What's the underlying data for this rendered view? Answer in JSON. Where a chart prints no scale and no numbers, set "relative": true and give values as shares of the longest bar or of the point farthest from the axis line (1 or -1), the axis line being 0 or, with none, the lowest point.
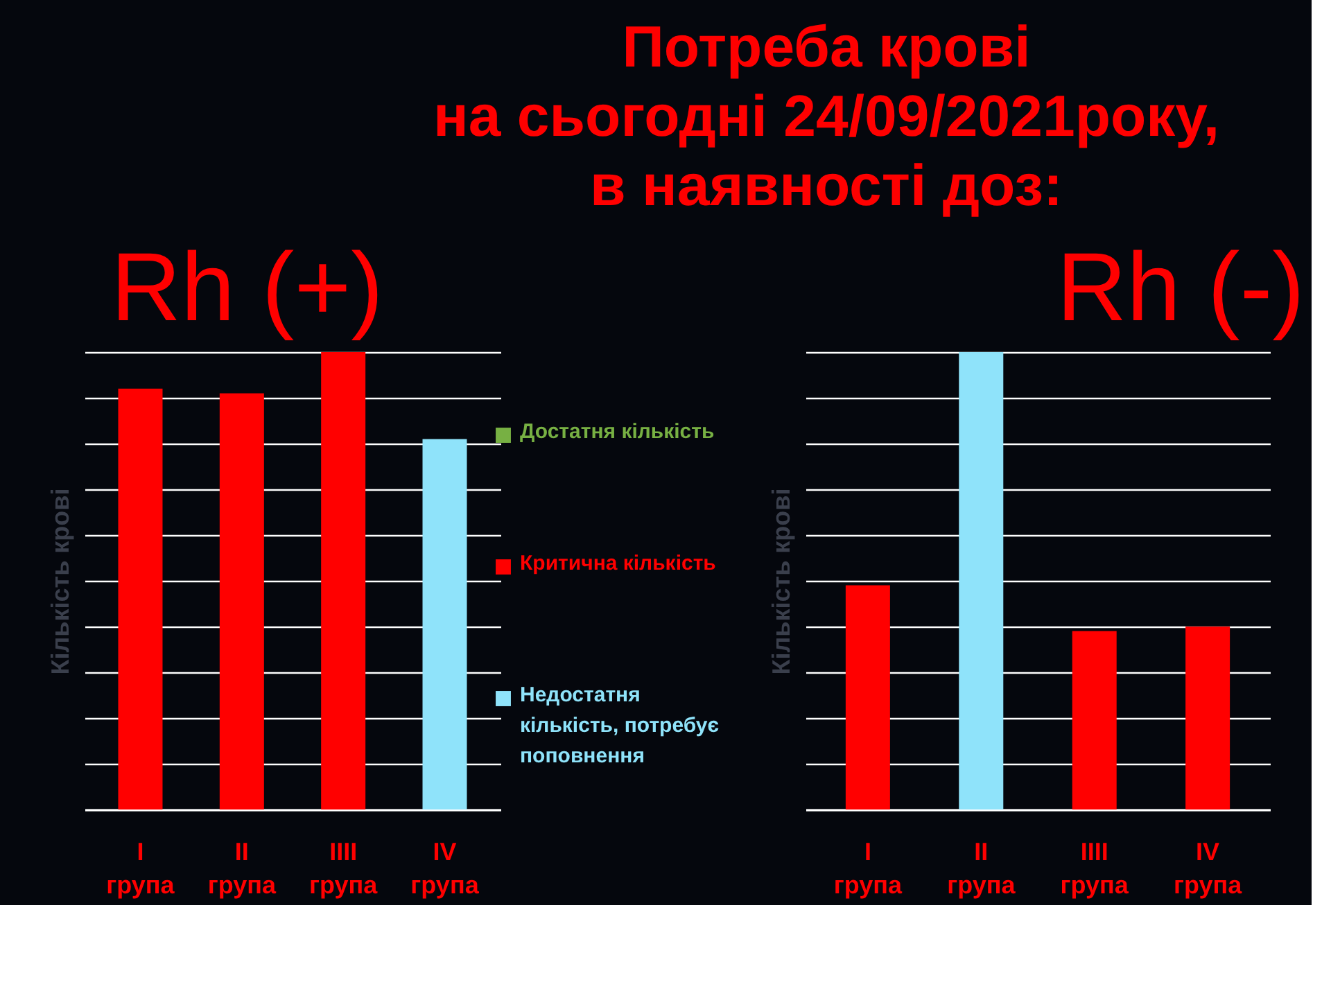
{
  "chart_data": [
    {
      "type": "other",
      "title": "Потреба крові\nна сьогодні 24/09/2021року,\nв наявності доз:"
    },
    {
      "type": "bar",
      "title": "Rh (+)",
      "ylabel": "Кількість крові",
      "categories": [
        "I група",
        "II група",
        "IIII група",
        "IV група"
      ],
      "relative": true,
      "stacked": true,
      "grid": "y",
      "legend": "right",
      "series": [
        {
          "name": "Достатня кількість",
          "color": "#77b043",
          "values": [
            null,
            null,
            null,
            null
          ]
        },
        {
          "name": "Критична кількість",
          "color": "#ff0000",
          "values": [
            0.92,
            0.91,
            1,
            null
          ]
        },
        {
          "name": "Недостатня кількість, потребує поповнення",
          "color": "#8fe3fa",
          "values": [
            null,
            null,
            null,
            0.81
          ]
        }
      ]
    },
    {
      "type": "bar",
      "title": "Rh (-)",
      "ylabel": "Кількість крові",
      "categories": [
        "I група",
        "II група",
        "IIII група",
        "IV група"
      ],
      "relative": true,
      "stacked": true,
      "grid": "y",
      "series": [
        {
          "color": "#ff0000",
          "values": [
            0.49,
            null,
            0.39,
            0.4
          ]
        },
        {
          "color": "#8fe3fa",
          "values": [
            null,
            1,
            null,
            null
          ]
        }
      ]
    }
  ]
}
